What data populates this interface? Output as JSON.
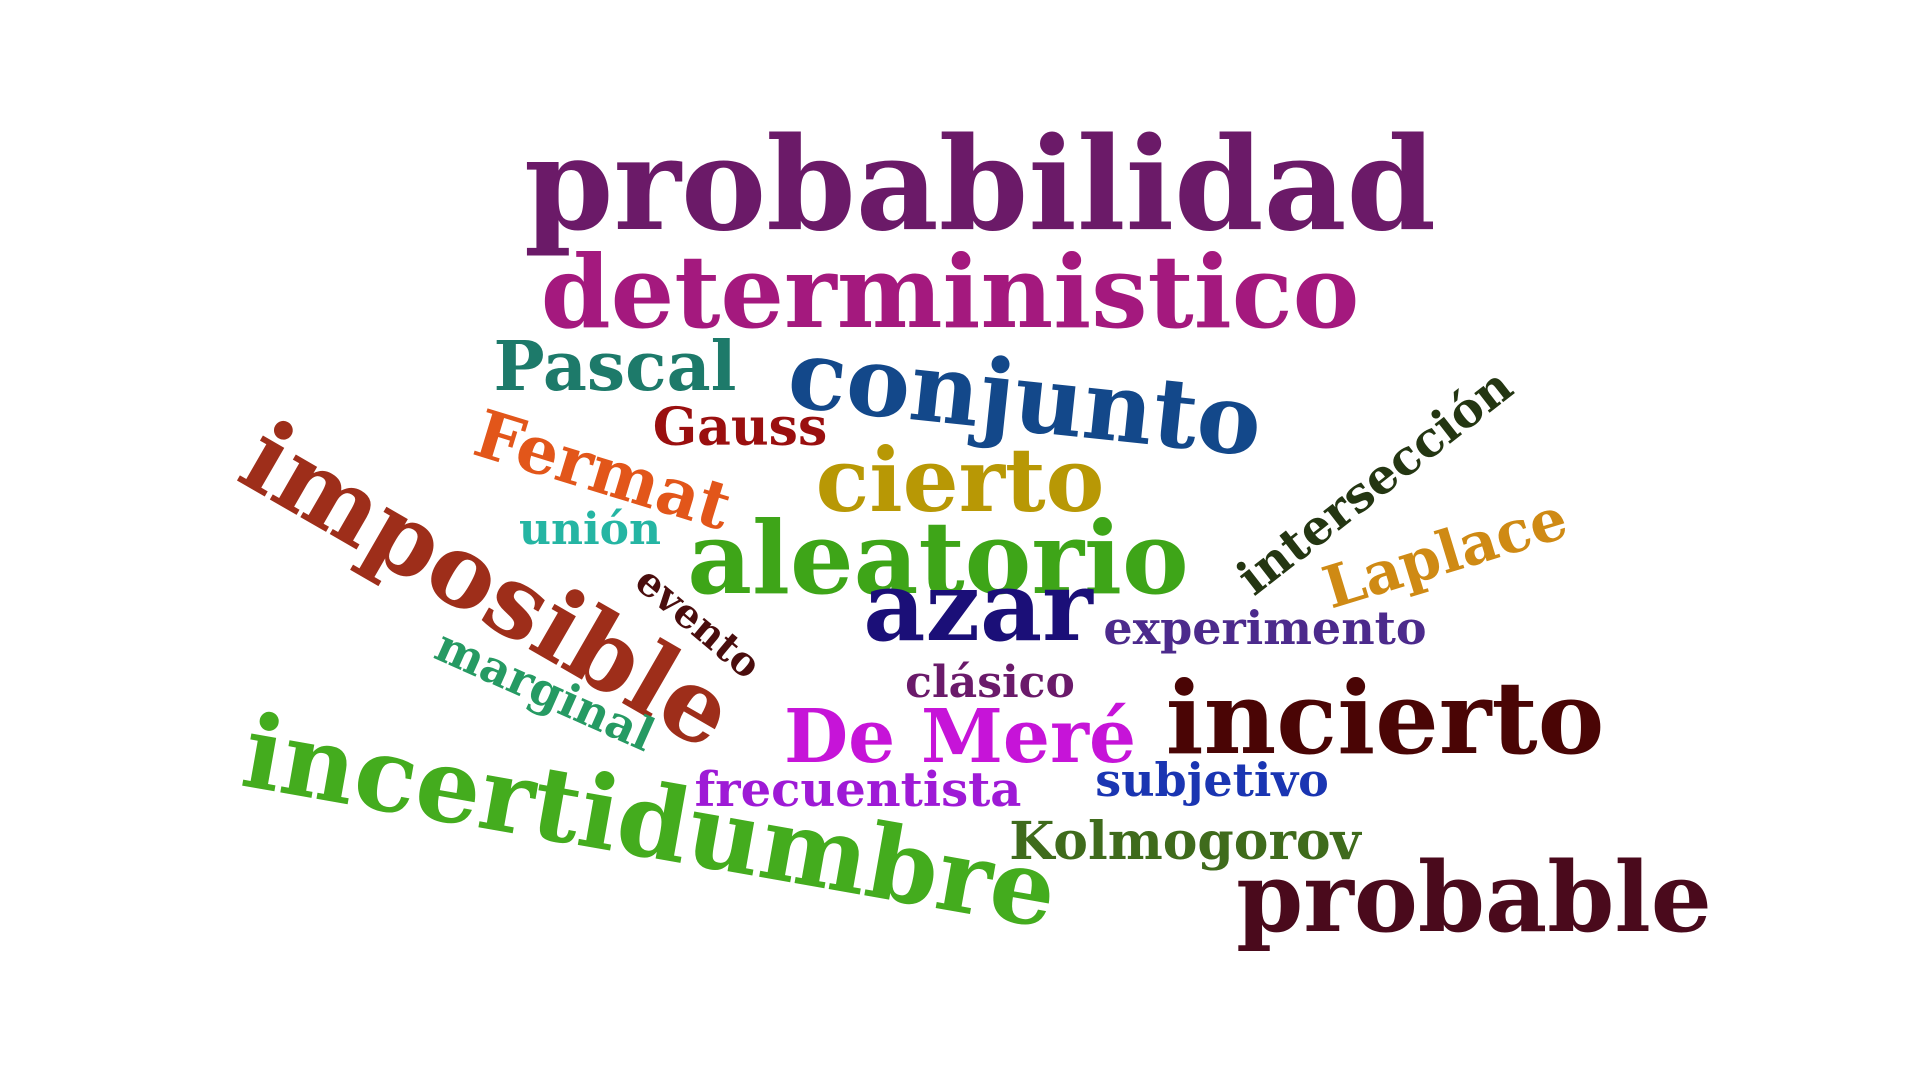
{
  "words": [
    {
      "text": "probabilidad",
      "color": "#6b1a68"
    },
    {
      "text": "deterministico",
      "color": "#a4197e"
    },
    {
      "text": "Pascal",
      "color": "#1d7a6a"
    },
    {
      "text": "conjunto",
      "color": "#13488a"
    },
    {
      "text": "Gauss",
      "color": "#9a0f0f"
    },
    {
      "text": "Fermat",
      "color": "#e2561a"
    },
    {
      "text": "cierto",
      "color": "#b89805"
    },
    {
      "text": "intersección",
      "color": "#243612"
    },
    {
      "text": "unión",
      "color": "#25b5a3"
    },
    {
      "text": "imposible",
      "color": "#9e2e1a"
    },
    {
      "text": "aleatorio",
      "color": "#3ea518"
    },
    {
      "text": "Laplace",
      "color": "#cf8a14"
    },
    {
      "text": "evento",
      "color": "#4a0d0d"
    },
    {
      "text": "azar",
      "color": "#1b0f78"
    },
    {
      "text": "experimento",
      "color": "#4c2a8c"
    },
    {
      "text": "marginal",
      "color": "#269a63"
    },
    {
      "text": "clásico",
      "color": "#6a1a6a"
    },
    {
      "text": "incierto",
      "color": "#4a0505"
    },
    {
      "text": "De Meré",
      "color": "#c614d8"
    },
    {
      "text": "subjetivo",
      "color": "#1a35b2"
    },
    {
      "text": "frecuentista",
      "color": "#9e1ad6"
    },
    {
      "text": "incertidumbre",
      "color": "#44ac1e"
    },
    {
      "text": "Kolmogorov",
      "color": "#3f6b1c"
    },
    {
      "text": "probable",
      "color": "#4a0a1c"
    }
  ]
}
